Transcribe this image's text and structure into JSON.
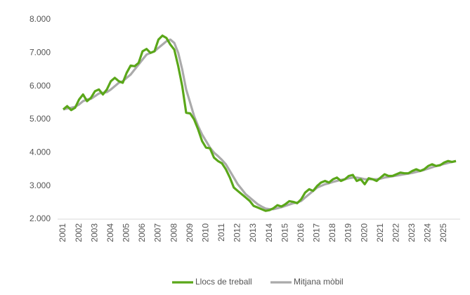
{
  "chart_data": {
    "type": "line",
    "categories": [
      "2001",
      null,
      null,
      null,
      "2002",
      null,
      null,
      null,
      "2003",
      null,
      null,
      null,
      "2004",
      null,
      null,
      null,
      "2005",
      null,
      null,
      null,
      "2006",
      null,
      null,
      null,
      "2007",
      null,
      null,
      null,
      "2008",
      null,
      null,
      null,
      "2009",
      null,
      null,
      null,
      "2010",
      null,
      null,
      null,
      "2011",
      null,
      null,
      null,
      "2012",
      null,
      null,
      null,
      "2013",
      null,
      null,
      null,
      "2014",
      null,
      null,
      null,
      "2015",
      null,
      null,
      null,
      "2016",
      null,
      null,
      null,
      "2017",
      null,
      null,
      null,
      "2018",
      null,
      null,
      null,
      "2019",
      null,
      null,
      null,
      "2020",
      null,
      null,
      null,
      "2021",
      null,
      null,
      null,
      "2022",
      null,
      null,
      null,
      "2023",
      null,
      null,
      null,
      "2024",
      null,
      null,
      null,
      "2025",
      null,
      null,
      null
    ],
    "series": [
      {
        "name": "Llocs de treball",
        "color": "#5aa719",
        "values": [
          5300,
          5400,
          5280,
          5350,
          5600,
          5750,
          5550,
          5650,
          5850,
          5900,
          5750,
          5900,
          6150,
          6250,
          6150,
          6100,
          6400,
          6620,
          6600,
          6700,
          7050,
          7120,
          7000,
          7050,
          7400,
          7520,
          7450,
          7250,
          7100,
          6600,
          6000,
          5200,
          5180,
          5000,
          4700,
          4350,
          4150,
          4130,
          3850,
          3750,
          3680,
          3500,
          3250,
          2950,
          2850,
          2750,
          2650,
          2550,
          2400,
          2350,
          2300,
          2250,
          2270,
          2330,
          2420,
          2380,
          2450,
          2540,
          2520,
          2480,
          2600,
          2800,
          2900,
          2850,
          3000,
          3100,
          3150,
          3100,
          3200,
          3250,
          3150,
          3200,
          3300,
          3330,
          3150,
          3200,
          3050,
          3230,
          3200,
          3150,
          3250,
          3350,
          3300,
          3300,
          3350,
          3400,
          3380,
          3380,
          3450,
          3500,
          3450,
          3500,
          3600,
          3650,
          3600,
          3620,
          3700,
          3750,
          3720,
          3750
        ]
      },
      {
        "name": "Mitjana mòbil",
        "color": "#aaaaaa",
        "values": [
          5300,
          5330,
          5350,
          5380,
          5450,
          5550,
          5600,
          5620,
          5700,
          5780,
          5800,
          5820,
          5900,
          6000,
          6100,
          6150,
          6250,
          6350,
          6500,
          6650,
          6800,
          6950,
          7000,
          7050,
          7150,
          7250,
          7350,
          7400,
          7300,
          7000,
          6500,
          5900,
          5500,
          5100,
          4800,
          4550,
          4350,
          4150,
          4000,
          3900,
          3780,
          3650,
          3450,
          3250,
          3050,
          2900,
          2750,
          2650,
          2550,
          2450,
          2380,
          2320,
          2300,
          2300,
          2330,
          2360,
          2400,
          2440,
          2480,
          2500,
          2550,
          2650,
          2750,
          2850,
          2950,
          3000,
          3050,
          3080,
          3120,
          3150,
          3180,
          3200,
          3230,
          3250,
          3250,
          3230,
          3200,
          3200,
          3200,
          3200,
          3220,
          3250,
          3270,
          3290,
          3310,
          3330,
          3350,
          3370,
          3390,
          3420,
          3450,
          3480,
          3520,
          3560,
          3600,
          3630,
          3660,
          3690,
          3720,
          3740
        ]
      }
    ],
    "ylim": [
      2000,
      8000
    ],
    "yticks": [
      {
        "value": 2000,
        "label": "2.000"
      },
      {
        "value": 3000,
        "label": "3.000"
      },
      {
        "value": 4000,
        "label": "4.000"
      },
      {
        "value": 5000,
        "label": "5.000"
      },
      {
        "value": 6000,
        "label": "6.000"
      },
      {
        "value": 7000,
        "label": "7.000"
      },
      {
        "value": 8000,
        "label": "8.000"
      }
    ],
    "grid": false,
    "legend": "bottom"
  }
}
